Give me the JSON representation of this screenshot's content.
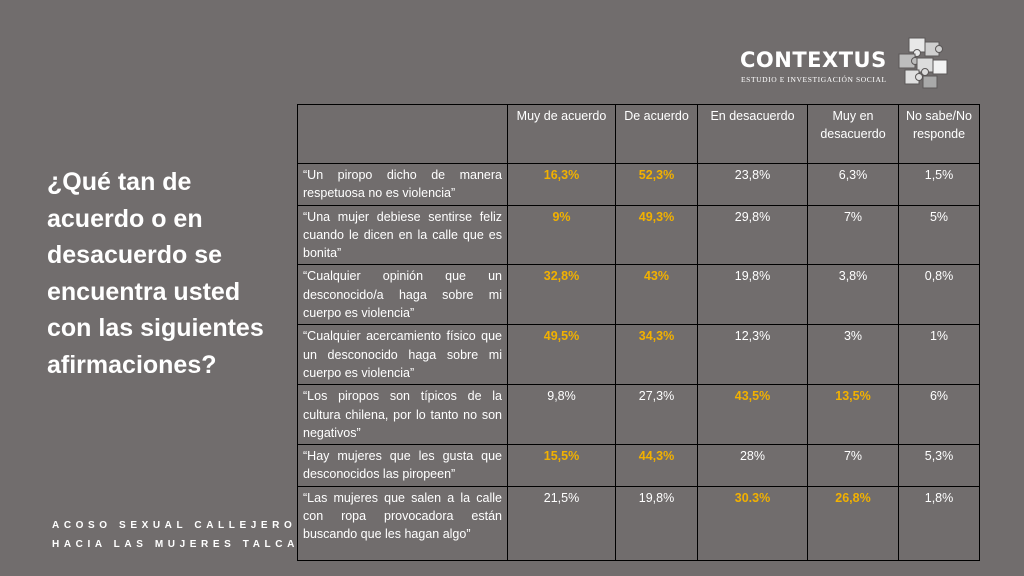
{
  "logo": {
    "name": "CONTEXTUS",
    "tagline": "ESTUDIO E INVESTIGACIÓN SOCIAL"
  },
  "question": "¿Qué tan de acuerdo o en desacuerdo se encuentra usted con las siguientes afirmaciones?",
  "footer": {
    "line1": "ACOSO SEXUAL CALLEJERO",
    "line2": "HACIA LAS MUJERES TALCA"
  },
  "colors": {
    "background": "#716d6d",
    "highlight": "#f2b100",
    "text": "#ffffff"
  },
  "table": {
    "headers": [
      "",
      "Muy de acuerdo",
      "De acuerdo",
      "En desacuerdo",
      "Muy en desacuerdo",
      "No sabe/No responde"
    ],
    "rows": [
      {
        "statement": "“Un piropo dicho de manera respetuosa no es violencia”",
        "values": [
          "16,3%",
          "52,3%",
          "23,8%",
          "6,3%",
          "1,5%"
        ]
      },
      {
        "statement": " “Una mujer debiese sentirse feliz cuando le dicen en la calle que es bonita”",
        "values": [
          "9%",
          "49,3%",
          "29,8%",
          "7%",
          "5%"
        ]
      },
      {
        "statement": "“Cualquier opinión que un desconocido/a haga sobre mi cuerpo es violencia”",
        "values": [
          "32,8%",
          "43%",
          "19,8%",
          "3,8%",
          "0,8%"
        ]
      },
      {
        "statement": "“Cualquier acercamiento físico que un desconocido haga sobre mi cuerpo es violencia”",
        "values": [
          "49,5%",
          "34,3%",
          "12,3%",
          "3%",
          "1%"
        ]
      },
      {
        "statement": "“Los piropos son típicos de la cultura chilena, por lo tanto no son negativos”",
        "values": [
          "9,8%",
          "27,3%",
          "43,5%",
          "13,5%",
          "6%"
        ]
      },
      {
        "statement": "“Hay mujeres que les gusta que desconocidos las piropeen”",
        "values": [
          "15,5%",
          "44,3%",
          "28%",
          "7%",
          "5,3%"
        ]
      },
      {
        "statement": "“Las mujeres que salen a la calle con ropa provocadora están buscando que les hagan algo”",
        "values": [
          "21,5%",
          "19,8%",
          "30.3%",
          "26,8%",
          "1,8%"
        ]
      }
    ],
    "highlighted": [
      [
        0,
        1
      ],
      [
        0,
        1
      ],
      [
        0,
        1
      ],
      [
        0,
        1
      ],
      [
        2,
        3
      ],
      [
        0,
        1
      ],
      [
        2,
        3
      ]
    ]
  }
}
